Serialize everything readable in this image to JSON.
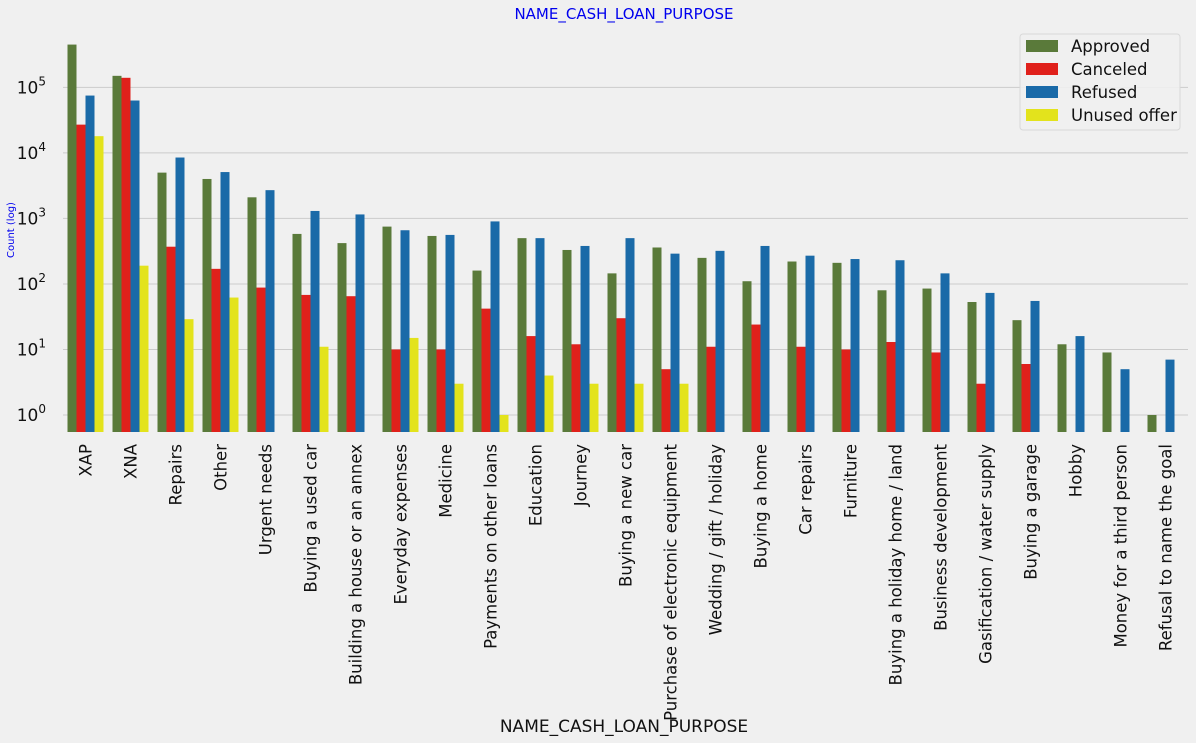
{
  "chart_data": {
    "type": "bar",
    "title": "NAME_CASH_LOAN_PURPOSE",
    "xlabel": "NAME_CASH_LOAN_PURPOSE",
    "ylabel": "Count (log)",
    "yscale": "log",
    "ylim": [
      0.55,
      700000
    ],
    "yticks": [
      1,
      10,
      100,
      1000,
      10000,
      100000
    ],
    "ytick_labels": [
      {
        "base": "10",
        "exp": "0"
      },
      {
        "base": "10",
        "exp": "1"
      },
      {
        "base": "10",
        "exp": "2"
      },
      {
        "base": "10",
        "exp": "3"
      },
      {
        "base": "10",
        "exp": "4"
      },
      {
        "base": "10",
        "exp": "5"
      }
    ],
    "grid": "horizontal",
    "legend_position": "top-right",
    "categories": [
      "XAP",
      "XNA",
      "Repairs",
      "Other",
      "Urgent needs",
      "Buying a used car",
      "Building a house or an annex",
      "Everyday expenses",
      "Medicine",
      "Payments on other loans",
      "Education",
      "Journey",
      "Buying a new car",
      "Purchase of electronic equipment",
      "Wedding / gift / holiday",
      "Buying a home",
      "Car repairs",
      "Furniture",
      "Buying a holiday home / land",
      "Business development",
      "Gasification / water supply",
      "Buying a garage",
      "Hobby",
      "Money for a third person",
      "Refusal to name the goal"
    ],
    "series": [
      {
        "name": "Approved",
        "color": "#5a7a3a",
        "values": [
          450000,
          150000,
          5000,
          4000,
          2100,
          580,
          420,
          750,
          540,
          160,
          500,
          330,
          145,
          360,
          250,
          110,
          220,
          210,
          80,
          85,
          53,
          28,
          12,
          9,
          1
        ]
      },
      {
        "name": "Canceled",
        "color": "#e0201b",
        "values": [
          27000,
          140000,
          370,
          170,
          88,
          68,
          65,
          10,
          10,
          42,
          16,
          12,
          30,
          5,
          11,
          24,
          11,
          10,
          13,
          9,
          3,
          6,
          null,
          null,
          null
        ]
      },
      {
        "name": "Refused",
        "color": "#1a6aa8",
        "values": [
          75000,
          63000,
          8500,
          5100,
          2700,
          1300,
          1150,
          660,
          560,
          900,
          500,
          380,
          500,
          290,
          320,
          380,
          270,
          240,
          230,
          145,
          73,
          55,
          16,
          5,
          7
        ]
      },
      {
        "name": "Unused offer",
        "color": "#e3e31c",
        "values": [
          18000,
          190,
          29,
          62,
          null,
          11,
          null,
          15,
          3,
          1,
          4,
          3,
          3,
          3,
          null,
          null,
          null,
          null,
          null,
          null,
          null,
          null,
          null,
          null,
          null
        ]
      }
    ]
  }
}
